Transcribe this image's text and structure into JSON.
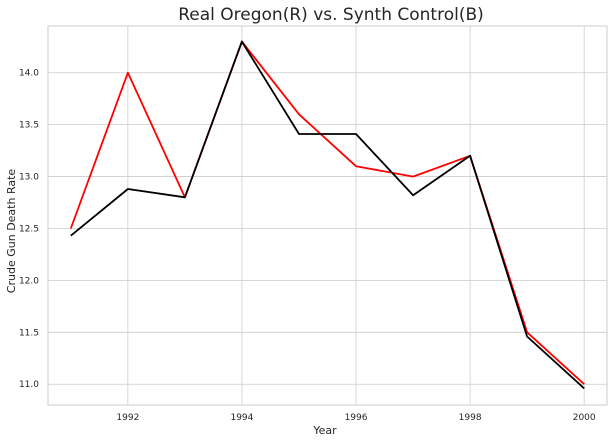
{
  "chart_data": {
    "type": "line",
    "title": "Real Oregon(R) vs. Synth Control(B)",
    "xlabel": "Year",
    "ylabel": "Crude Gun Death Rate",
    "x": [
      1991,
      1992,
      1993,
      1994,
      1995,
      1996,
      1997,
      1998,
      1999,
      2000
    ],
    "xlim": [
      1990.6,
      2000.4
    ],
    "ylim": [
      10.8,
      14.45
    ],
    "xticks": [
      1992,
      1994,
      1996,
      1998,
      2000
    ],
    "yticks": [
      11.0,
      11.5,
      12.0,
      12.5,
      13.0,
      13.5,
      14.0
    ],
    "xtick_labels": [
      "1992",
      "1994",
      "1996",
      "1998",
      "2000"
    ],
    "ytick_labels": [
      "11.0",
      "11.5",
      "12.0",
      "12.5",
      "13.0",
      "13.5",
      "14.0"
    ],
    "grid": true,
    "series": [
      {
        "color": "#ff0000",
        "values": [
          12.5,
          14.0,
          12.8,
          14.3,
          13.6,
          13.1,
          13.0,
          13.2,
          11.5,
          11.0
        ]
      },
      {
        "color": "#000000",
        "values": [
          12.43,
          12.88,
          12.8,
          14.3,
          13.41,
          13.41,
          12.82,
          13.2,
          11.46,
          10.96
        ]
      }
    ]
  }
}
